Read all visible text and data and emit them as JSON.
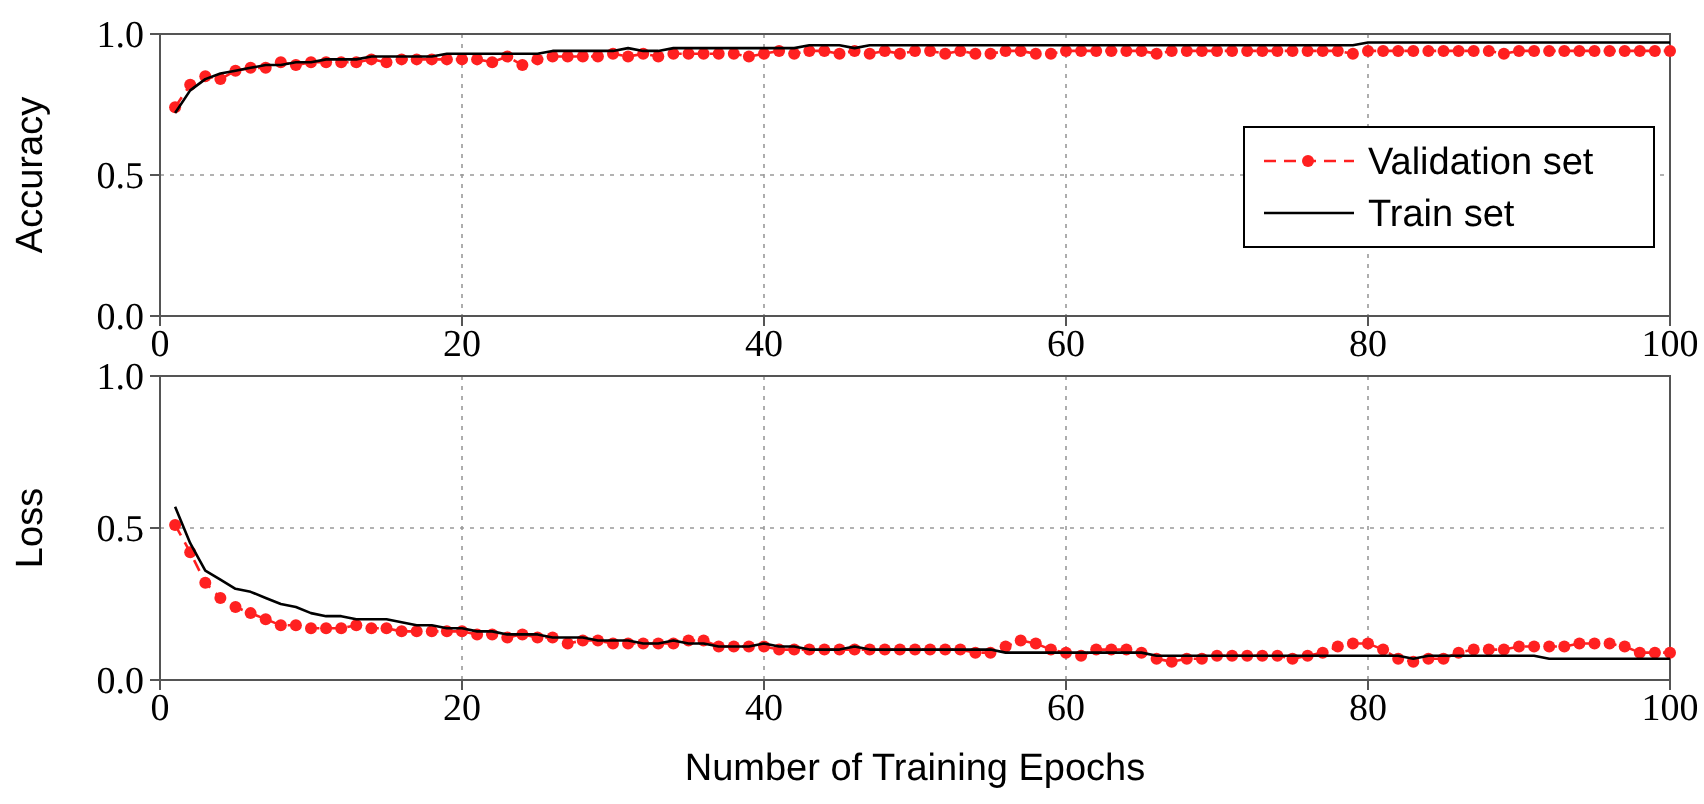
{
  "chart_data": [
    {
      "type": "line",
      "ylabel": "Accuracy",
      "xlim": [
        0,
        100
      ],
      "xticks": [
        0,
        20,
        40,
        60,
        80,
        100
      ],
      "ylim": [
        0,
        1
      ],
      "yticks": [
        {
          "value": 0,
          "label": "0.0"
        },
        {
          "value": 0.5,
          "label": "0.5"
        },
        {
          "value": 1,
          "label": "1.0"
        }
      ],
      "grid": true,
      "legend": "right",
      "x": [
        1,
        2,
        3,
        4,
        5,
        6,
        7,
        8,
        9,
        10,
        11,
        12,
        13,
        14,
        15,
        16,
        17,
        18,
        19,
        20,
        21,
        22,
        23,
        24,
        25,
        26,
        27,
        28,
        29,
        30,
        31,
        32,
        33,
        34,
        35,
        36,
        37,
        38,
        39,
        40,
        41,
        42,
        43,
        44,
        45,
        46,
        47,
        48,
        49,
        50,
        51,
        52,
        53,
        54,
        55,
        56,
        57,
        58,
        59,
        60,
        61,
        62,
        63,
        64,
        65,
        66,
        67,
        68,
        69,
        70,
        71,
        72,
        73,
        74,
        75,
        76,
        77,
        78,
        79,
        80,
        81,
        82,
        83,
        84,
        85,
        86,
        87,
        88,
        89,
        90,
        91,
        92,
        93,
        94,
        95,
        96,
        97,
        98,
        99,
        100
      ],
      "series": [
        {
          "name": "Validation set",
          "color": "#ff2020",
          "marker": "circle",
          "line_style": "dashed",
          "values": [
            0.74,
            0.82,
            0.85,
            0.84,
            0.87,
            0.88,
            0.88,
            0.9,
            0.89,
            0.9,
            0.9,
            0.9,
            0.9,
            0.91,
            0.9,
            0.91,
            0.91,
            0.91,
            0.91,
            0.91,
            0.91,
            0.9,
            0.92,
            0.89,
            0.91,
            0.92,
            0.92,
            0.92,
            0.92,
            0.93,
            0.92,
            0.93,
            0.92,
            0.93,
            0.93,
            0.93,
            0.93,
            0.93,
            0.92,
            0.93,
            0.94,
            0.93,
            0.94,
            0.94,
            0.93,
            0.94,
            0.93,
            0.94,
            0.93,
            0.94,
            0.94,
            0.93,
            0.94,
            0.93,
            0.93,
            0.94,
            0.94,
            0.93,
            0.93,
            0.94,
            0.94,
            0.94,
            0.94,
            0.94,
            0.94,
            0.93,
            0.94,
            0.94,
            0.94,
            0.94,
            0.94,
            0.94,
            0.94,
            0.94,
            0.94,
            0.94,
            0.94,
            0.94,
            0.93,
            0.94,
            0.94,
            0.94,
            0.94,
            0.94,
            0.94,
            0.94,
            0.94,
            0.94,
            0.93,
            0.94,
            0.94,
            0.94,
            0.94,
            0.94,
            0.94,
            0.94,
            0.94,
            0.94,
            0.94,
            0.94
          ]
        },
        {
          "name": "Train set",
          "color": "#000000",
          "marker": "none",
          "line_style": "solid",
          "values": [
            0.72,
            0.8,
            0.84,
            0.86,
            0.87,
            0.88,
            0.89,
            0.89,
            0.9,
            0.9,
            0.91,
            0.91,
            0.91,
            0.92,
            0.92,
            0.92,
            0.92,
            0.92,
            0.93,
            0.93,
            0.93,
            0.93,
            0.93,
            0.93,
            0.93,
            0.94,
            0.94,
            0.94,
            0.94,
            0.94,
            0.95,
            0.94,
            0.94,
            0.95,
            0.95,
            0.95,
            0.95,
            0.95,
            0.95,
            0.95,
            0.95,
            0.95,
            0.96,
            0.96,
            0.96,
            0.95,
            0.96,
            0.96,
            0.96,
            0.96,
            0.96,
            0.96,
            0.96,
            0.96,
            0.96,
            0.96,
            0.96,
            0.96,
            0.96,
            0.96,
            0.96,
            0.96,
            0.96,
            0.96,
            0.96,
            0.96,
            0.96,
            0.96,
            0.96,
            0.96,
            0.96,
            0.96,
            0.96,
            0.96,
            0.96,
            0.96,
            0.96,
            0.96,
            0.96,
            0.97,
            0.97,
            0.97,
            0.97,
            0.97,
            0.97,
            0.97,
            0.97,
            0.97,
            0.97,
            0.97,
            0.97,
            0.97,
            0.97,
            0.97,
            0.97,
            0.97,
            0.97,
            0.97,
            0.97,
            0.97
          ]
        }
      ]
    },
    {
      "type": "line",
      "ylabel": "Loss",
      "xlabel": "Number of Training Epochs",
      "xlim": [
        0,
        100
      ],
      "xticks": [
        0,
        20,
        40,
        60,
        80,
        100
      ],
      "ylim": [
        0,
        1
      ],
      "yticks": [
        {
          "value": 0,
          "label": "0.0"
        },
        {
          "value": 0.5,
          "label": "0.5"
        },
        {
          "value": 1,
          "label": "1.0"
        }
      ],
      "grid": true,
      "x": [
        1,
        2,
        3,
        4,
        5,
        6,
        7,
        8,
        9,
        10,
        11,
        12,
        13,
        14,
        15,
        16,
        17,
        18,
        19,
        20,
        21,
        22,
        23,
        24,
        25,
        26,
        27,
        28,
        29,
        30,
        31,
        32,
        33,
        34,
        35,
        36,
        37,
        38,
        39,
        40,
        41,
        42,
        43,
        44,
        45,
        46,
        47,
        48,
        49,
        50,
        51,
        52,
        53,
        54,
        55,
        56,
        57,
        58,
        59,
        60,
        61,
        62,
        63,
        64,
        65,
        66,
        67,
        68,
        69,
        70,
        71,
        72,
        73,
        74,
        75,
        76,
        77,
        78,
        79,
        80,
        81,
        82,
        83,
        84,
        85,
        86,
        87,
        88,
        89,
        90,
        91,
        92,
        93,
        94,
        95,
        96,
        97,
        98,
        99,
        100
      ],
      "series": [
        {
          "color": "#ff2020",
          "marker": "circle",
          "line_style": "dashed",
          "values": [
            0.51,
            0.42,
            0.32,
            0.27,
            0.24,
            0.22,
            0.2,
            0.18,
            0.18,
            0.17,
            0.17,
            0.17,
            0.18,
            0.17,
            0.17,
            0.16,
            0.16,
            0.16,
            0.16,
            0.16,
            0.15,
            0.15,
            0.14,
            0.15,
            0.14,
            0.14,
            0.12,
            0.13,
            0.13,
            0.12,
            0.12,
            0.12,
            0.12,
            0.12,
            0.13,
            0.13,
            0.11,
            0.11,
            0.11,
            0.11,
            0.1,
            0.1,
            0.1,
            0.1,
            0.1,
            0.1,
            0.1,
            0.1,
            0.1,
            0.1,
            0.1,
            0.1,
            0.1,
            0.09,
            0.09,
            0.11,
            0.13,
            0.12,
            0.1,
            0.09,
            0.08,
            0.1,
            0.1,
            0.1,
            0.09,
            0.07,
            0.06,
            0.07,
            0.07,
            0.08,
            0.08,
            0.08,
            0.08,
            0.08,
            0.07,
            0.08,
            0.09,
            0.11,
            0.12,
            0.12,
            0.1,
            0.07,
            0.06,
            0.07,
            0.07,
            0.09,
            0.1,
            0.1,
            0.1,
            0.11,
            0.11,
            0.11,
            0.11,
            0.12,
            0.12,
            0.12,
            0.11,
            0.09,
            0.09,
            0.09
          ]
        },
        {
          "color": "#000000",
          "marker": "none",
          "line_style": "solid",
          "values": [
            0.57,
            0.45,
            0.36,
            0.33,
            0.3,
            0.29,
            0.27,
            0.25,
            0.24,
            0.22,
            0.21,
            0.21,
            0.2,
            0.2,
            0.2,
            0.19,
            0.18,
            0.18,
            0.17,
            0.17,
            0.16,
            0.16,
            0.15,
            0.15,
            0.15,
            0.14,
            0.14,
            0.14,
            0.13,
            0.13,
            0.13,
            0.12,
            0.12,
            0.13,
            0.12,
            0.12,
            0.11,
            0.11,
            0.11,
            0.12,
            0.11,
            0.11,
            0.1,
            0.1,
            0.1,
            0.11,
            0.1,
            0.1,
            0.1,
            0.1,
            0.1,
            0.1,
            0.1,
            0.1,
            0.1,
            0.09,
            0.09,
            0.09,
            0.09,
            0.09,
            0.09,
            0.09,
            0.09,
            0.09,
            0.09,
            0.08,
            0.08,
            0.08,
            0.08,
            0.08,
            0.08,
            0.08,
            0.08,
            0.08,
            0.08,
            0.08,
            0.08,
            0.08,
            0.08,
            0.08,
            0.08,
            0.08,
            0.07,
            0.08,
            0.08,
            0.08,
            0.08,
            0.08,
            0.08,
            0.08,
            0.08,
            0.07,
            0.07,
            0.07,
            0.07,
            0.07,
            0.07,
            0.07,
            0.07,
            0.07
          ]
        }
      ]
    }
  ]
}
